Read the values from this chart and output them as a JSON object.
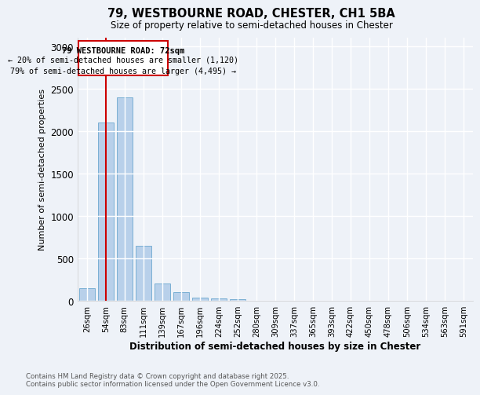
{
  "title_line1": "79, WESTBOURNE ROAD, CHESTER, CH1 5BA",
  "title_line2": "Size of property relative to semi-detached houses in Chester",
  "xlabel": "Distribution of semi-detached houses by size in Chester",
  "ylabel": "Number of semi-detached properties",
  "categories": [
    "26sqm",
    "54sqm",
    "83sqm",
    "111sqm",
    "139sqm",
    "167sqm",
    "196sqm",
    "224sqm",
    "252sqm",
    "280sqm",
    "309sqm",
    "337sqm",
    "365sqm",
    "393sqm",
    "422sqm",
    "450sqm",
    "478sqm",
    "506sqm",
    "534sqm",
    "563sqm",
    "591sqm"
  ],
  "values": [
    150,
    2100,
    2400,
    650,
    200,
    100,
    40,
    25,
    15,
    0,
    0,
    0,
    0,
    0,
    0,
    0,
    0,
    0,
    0,
    0,
    0
  ],
  "bar_color": "#b8d0ea",
  "bar_edge_color": "#7aafd4",
  "property_line_x": 1.0,
  "property_label": "79 WESTBOURNE ROAD: 72sqm",
  "smaller_pct": "20%",
  "smaller_count": "1,120",
  "larger_pct": "79%",
  "larger_count": "4,495",
  "annotation_box_color": "#cc0000",
  "ylim": [
    0,
    3100
  ],
  "yticks": [
    0,
    500,
    1000,
    1500,
    2000,
    2500,
    3000
  ],
  "footer_line1": "Contains HM Land Registry data © Crown copyright and database right 2025.",
  "footer_line2": "Contains public sector information licensed under the Open Government Licence v3.0.",
  "background_color": "#eef2f8"
}
